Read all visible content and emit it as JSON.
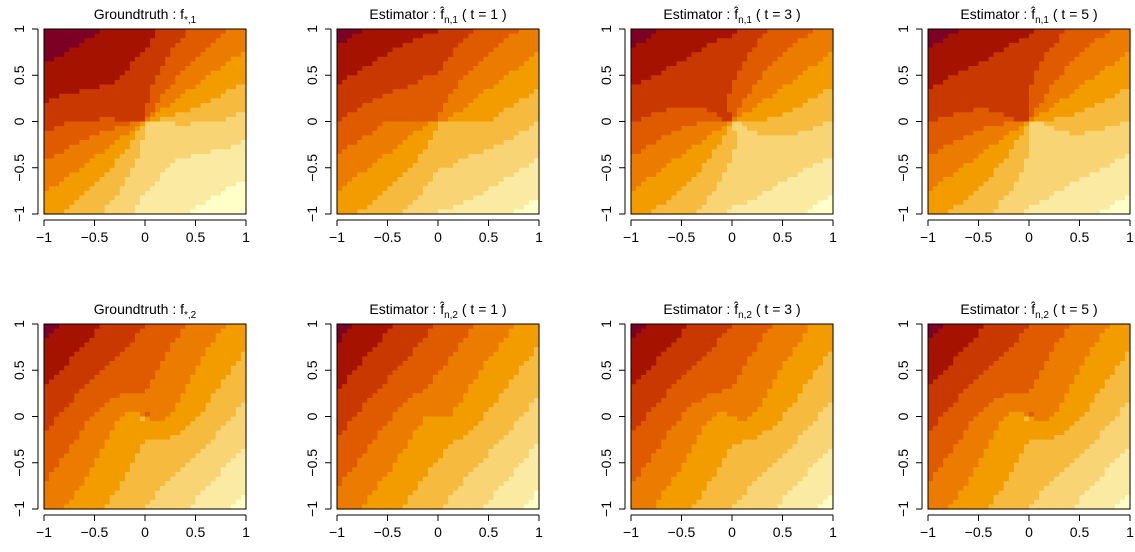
{
  "chart_data": {
    "type": "heatmap",
    "layout": "2x4 grid of filled contour panels",
    "x": {
      "lim": [
        -1,
        1
      ],
      "ticks": [
        -1,
        -0.5,
        0,
        0.5,
        1
      ],
      "tick_labels": [
        "−1",
        "−0.5",
        "0",
        "0.5",
        "1"
      ]
    },
    "y": {
      "lim": [
        -1,
        1
      ],
      "ticks": [
        -1,
        -0.5,
        0,
        0.5,
        1
      ],
      "tick_labels": [
        "−1",
        "−0.5",
        "0",
        "0.5",
        "1"
      ]
    },
    "color_scale": "heat (light yellow = low, dark red = high)",
    "levels": 10,
    "palette": [
      "#FFFFC8",
      "#FBEBA2",
      "#F8D475",
      "#F6BA3F",
      "#F39C00",
      "#EC7C00",
      "#E05A00",
      "#C93800",
      "#A51300",
      "#7D0025"
    ],
    "panels": [
      {
        "row": 0,
        "col": 0,
        "component": 1,
        "kind": "truth",
        "t": null,
        "title": {
          "prefix": "Groundtruth : ",
          "symbol": "f",
          "sub": "*,1",
          "suffix": ""
        }
      },
      {
        "row": 0,
        "col": 1,
        "component": 1,
        "kind": "estimator",
        "t": 1,
        "title": {
          "prefix": "Estimator : ",
          "symbol": "f̂",
          "sub": "n,1",
          "suffix": " ( t = 1 )"
        }
      },
      {
        "row": 0,
        "col": 2,
        "component": 1,
        "kind": "estimator",
        "t": 3,
        "title": {
          "prefix": "Estimator : ",
          "symbol": "f̂",
          "sub": "n,1",
          "suffix": " ( t = 3 )"
        }
      },
      {
        "row": 0,
        "col": 3,
        "component": 1,
        "kind": "estimator",
        "t": 5,
        "title": {
          "prefix": "Estimator : ",
          "symbol": "f̂",
          "sub": "n,1",
          "suffix": " ( t = 5 )"
        }
      },
      {
        "row": 1,
        "col": 0,
        "component": 2,
        "kind": "truth",
        "t": null,
        "title": {
          "prefix": "Groundtruth : ",
          "symbol": "f",
          "sub": "*,2",
          "suffix": ""
        }
      },
      {
        "row": 1,
        "col": 1,
        "component": 2,
        "kind": "estimator",
        "t": 1,
        "title": {
          "prefix": "Estimator : ",
          "symbol": "f̂",
          "sub": "n,2",
          "suffix": " ( t = 1 )"
        }
      },
      {
        "row": 1,
        "col": 2,
        "component": 2,
        "kind": "estimator",
        "t": 3,
        "title": {
          "prefix": "Estimator : ",
          "symbol": "f̂",
          "sub": "n,2",
          "suffix": " ( t = 3 )"
        }
      },
      {
        "row": 1,
        "col": 3,
        "component": 2,
        "kind": "estimator",
        "t": 5,
        "title": {
          "prefix": "Estimator : ",
          "symbol": "f̂",
          "sub": "n,2",
          "suffix": " ( t = 5 )"
        }
      }
    ]
  }
}
